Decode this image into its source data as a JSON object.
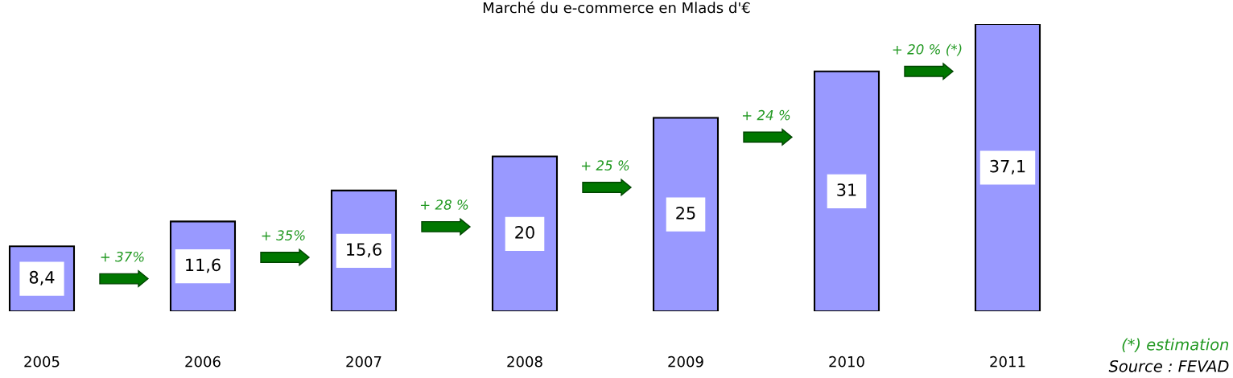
{
  "chart_data": {
    "type": "bar",
    "title": "Marché du e-commerce en Mlads d'€",
    "categories": [
      "2005",
      "2006",
      "2007",
      "2008",
      "2009",
      "2010",
      "2011"
    ],
    "values": [
      8.4,
      11.6,
      15.6,
      20,
      25,
      31,
      37.1
    ],
    "value_labels": [
      "8,4",
      "11,6",
      "15,6",
      "20",
      "25",
      "31",
      "37,1"
    ],
    "color": "#9999ff",
    "annotations": [
      "+ 37%",
      "+ 35%",
      "+ 28 %",
      "+ 25 %",
      "+ 24 %",
      "+ 20 % (*)",
      "(*) estimation",
      "Source : FEVAD"
    ]
  }
}
